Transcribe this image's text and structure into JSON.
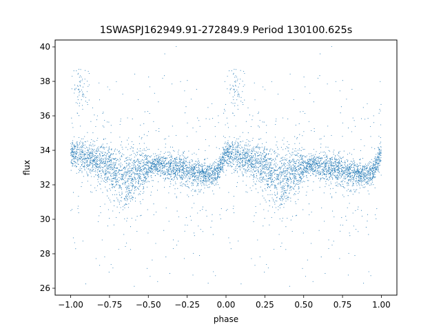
{
  "chart_data": {
    "type": "scatter",
    "title": "1SWASPJ162949.91-272849.9 Period 130100.625s",
    "xlabel": "phase",
    "ylabel": "flux",
    "xlim": [
      -1.1,
      1.1
    ],
    "ylim": [
      25.6,
      40.4
    ],
    "xticks": [
      -1.0,
      -0.75,
      -0.5,
      -0.25,
      0.0,
      0.25,
      0.5,
      0.75,
      1.0
    ],
    "xtick_labels": [
      "−1.00",
      "−0.75",
      "−0.50",
      "−0.25",
      "0.00",
      "0.25",
      "0.50",
      "0.75",
      "1.00"
    ],
    "yticks": [
      26,
      28,
      30,
      32,
      34,
      36,
      38,
      40
    ],
    "ytick_labels": [
      "26",
      "28",
      "30",
      "32",
      "34",
      "36",
      "38",
      "40"
    ],
    "grid": false,
    "legend": "none",
    "marker_color": "#1f77b4",
    "note": "dense scatter of phase-folded photometry; trend points describe the main band, spread describes the scatter envelope",
    "series": [
      {
        "points_description": "main band center vs phase (folded, repeats every 1.0)",
        "x": [
          0.0,
          0.05,
          0.1,
          0.15,
          0.2,
          0.25,
          0.3,
          0.35,
          0.4,
          0.45,
          0.5,
          0.55,
          0.6,
          0.65,
          0.7,
          0.75,
          0.8,
          0.85,
          0.9,
          0.95,
          1.0
        ],
        "y": [
          33.8,
          33.7,
          33.6,
          33.4,
          33.2,
          33.0,
          32.6,
          32.3,
          32.5,
          32.8,
          33.0,
          33.1,
          33.1,
          33.0,
          32.9,
          32.9,
          32.7,
          32.6,
          32.6,
          32.8,
          33.8
        ],
        "spread": [
          0.5,
          0.6,
          0.7,
          0.7,
          0.8,
          0.9,
          1.1,
          1.2,
          1.0,
          0.9,
          0.6,
          0.5,
          0.5,
          0.6,
          0.6,
          0.6,
          0.6,
          0.5,
          0.5,
          0.5,
          0.5
        ]
      }
    ]
  }
}
